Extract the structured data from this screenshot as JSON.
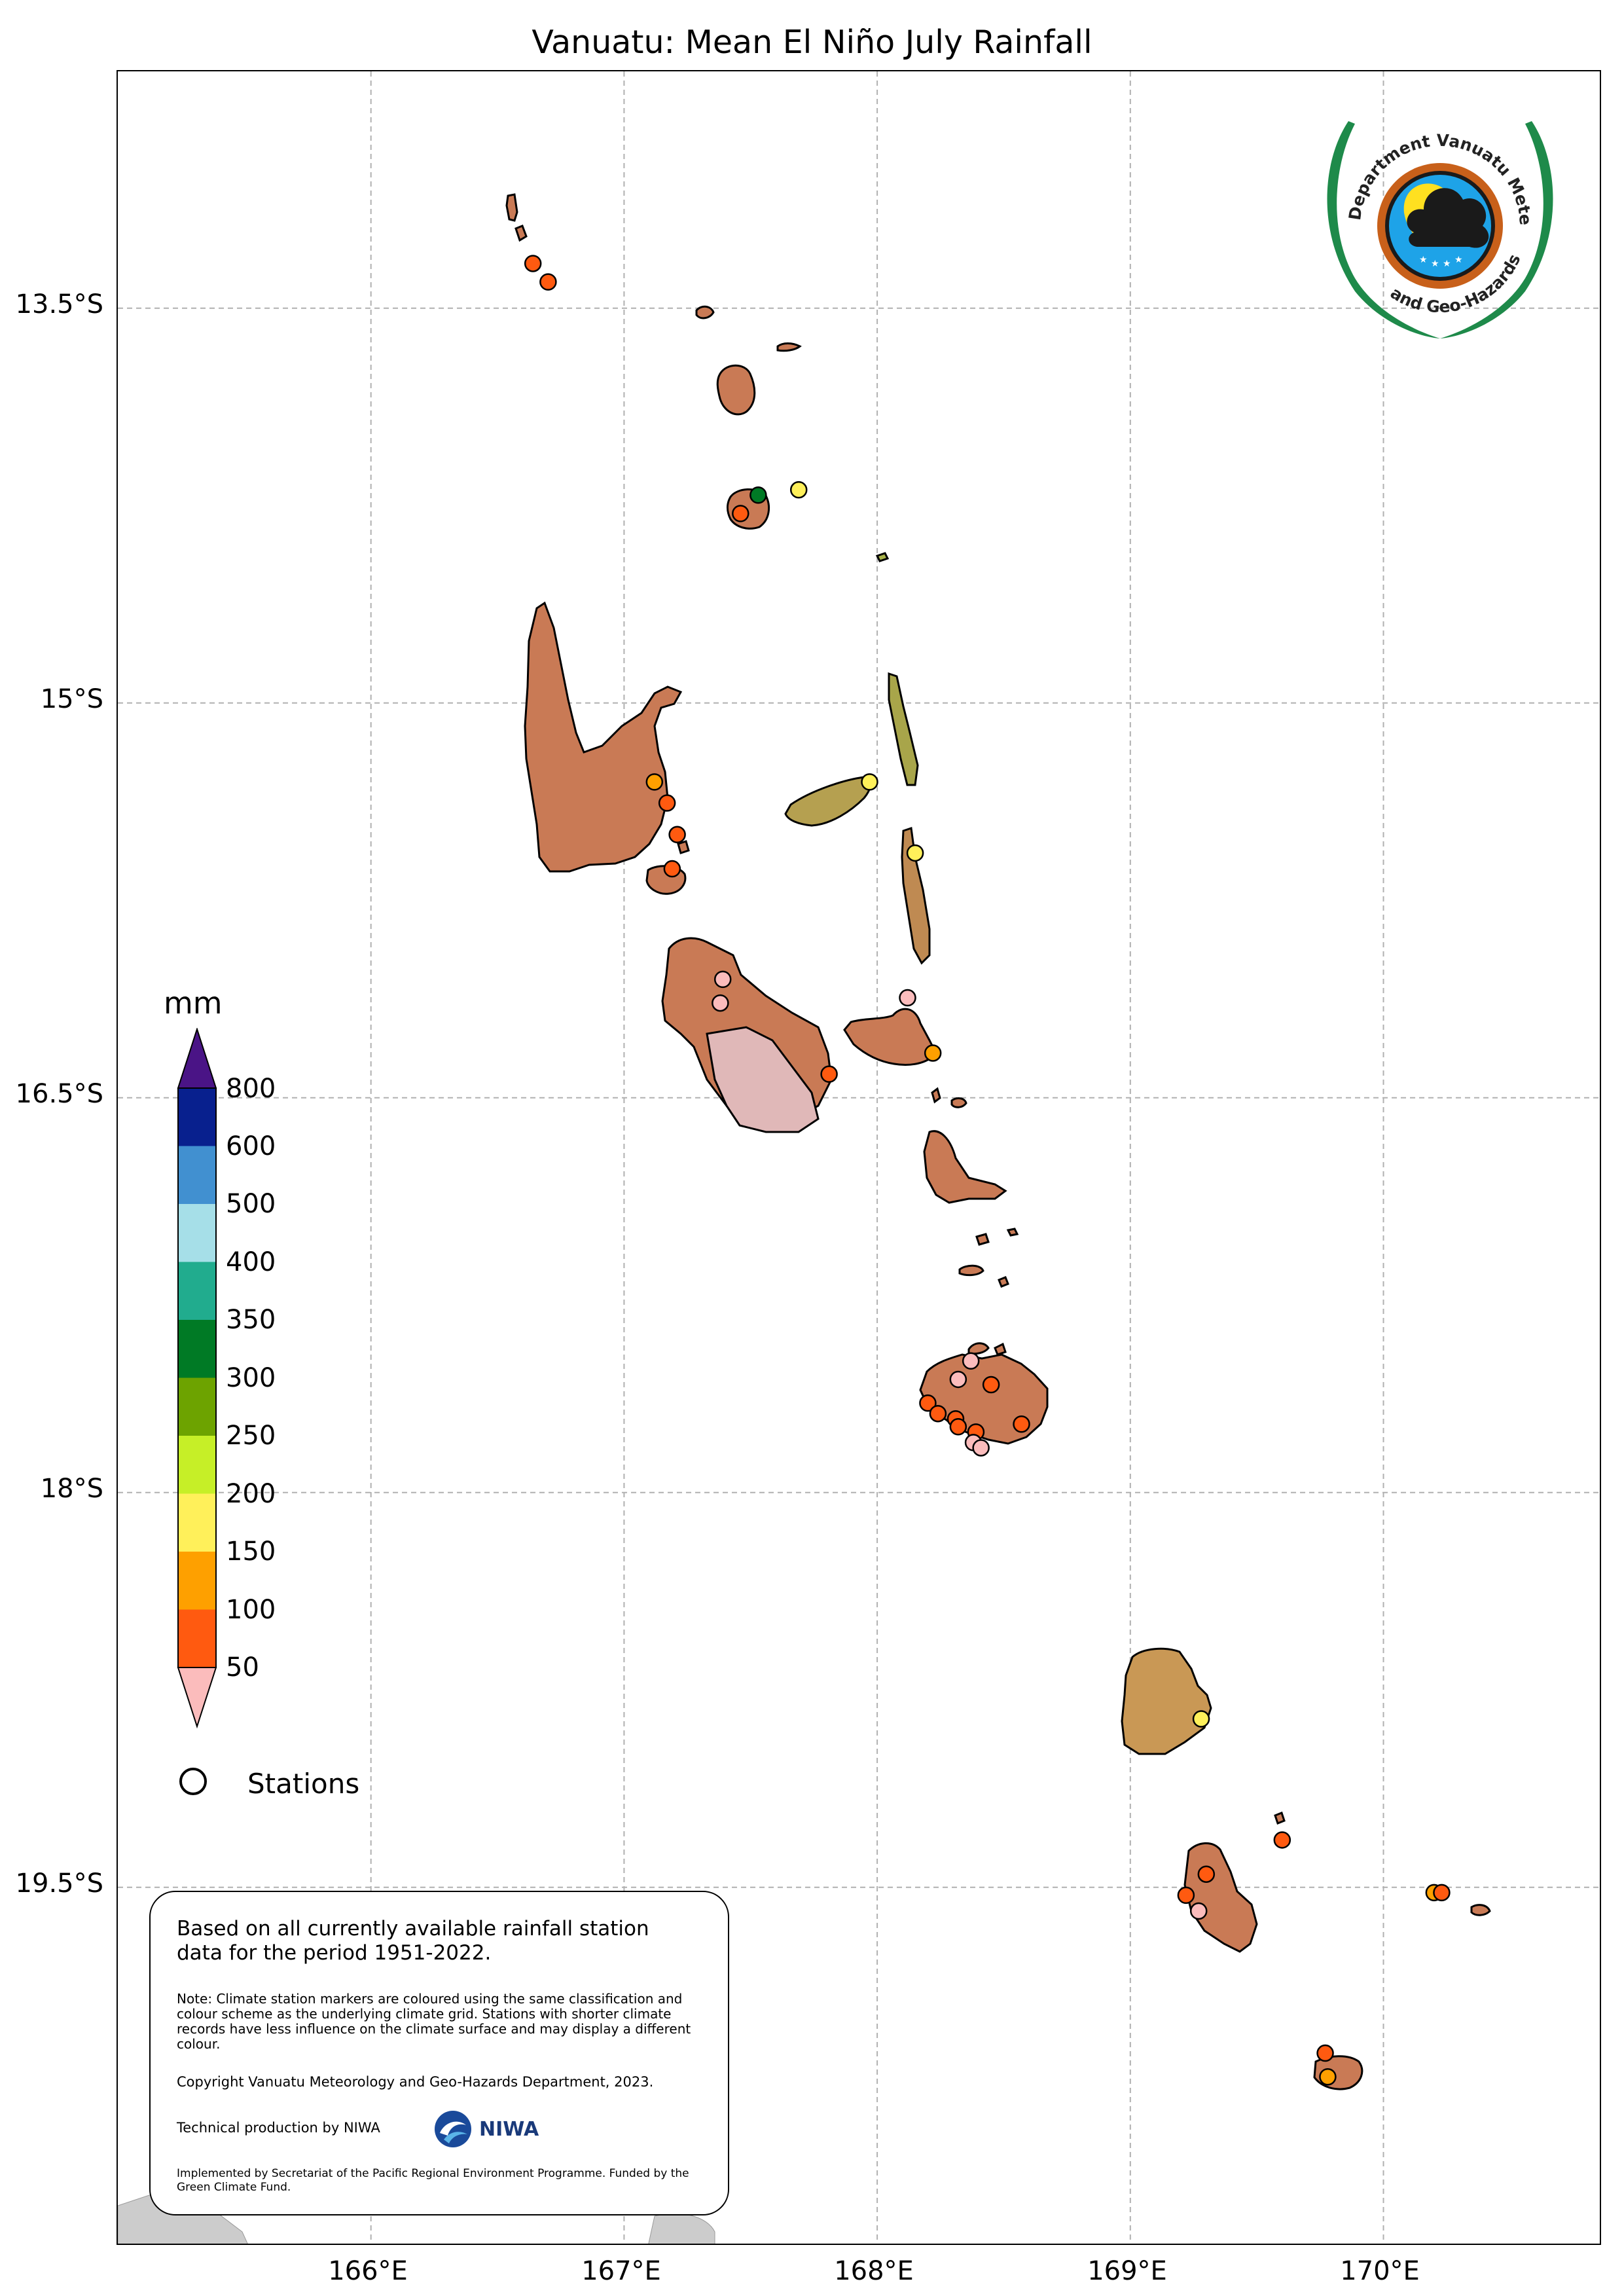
{
  "title": "Vanuatu: Mean El Niño July Rainfall",
  "axes": {
    "lat_labels": [
      "13.5°S",
      "15°S",
      "16.5°S",
      "18°S",
      "19.5°S"
    ],
    "lon_labels": [
      "166°E",
      "167°E",
      "168°E",
      "169°E",
      "170°E"
    ]
  },
  "logo": {
    "text": "Department Vanuatu Meteorology and Geo-Hazards",
    "colors": {
      "wreath": "#1e8a4a",
      "ring_outer": "#c8601a",
      "disk": "#1ea3e8",
      "sun": "#ffe020",
      "cloud": "#1a1a1a"
    }
  },
  "legend": {
    "unit": "mm",
    "labels": [
      "800",
      "600",
      "500",
      "400",
      "350",
      "300",
      "250",
      "200",
      "150",
      "100",
      "50"
    ],
    "colors": {
      "over": "#4a1486",
      "bins": [
        "#08208e",
        "#4190d0",
        "#a6dfe8",
        "#21ac8e",
        "#007a25",
        "#6da300",
        "#c6ef27",
        "#fff05a",
        "#fea000",
        "#ff5a10"
      ],
      "under": "#fbbcbc"
    },
    "stations_label": "Stations"
  },
  "info": {
    "main": "Based on all currently available rainfall station data for the period 1951-2022.",
    "note": "Note: Climate station markers are coloured using the same classification and colour scheme as the underlying climate grid. Stations with shorter climate records have less influence on the climate surface and may display a different colour.",
    "copyright": "Copyright Vanuatu Meteorology and Geo-Hazards Department, 2023.",
    "technical": "Technical production by NIWA",
    "niwa_logo_text": "NIWA",
    "implemented": "Implemented by Secretariat of the Pacific Regional Environment Programme. Funded by the Green Climate Fund."
  },
  "map": {
    "land_color": "#c97a55",
    "stations": [
      {
        "lon": 166.64,
        "lat": -13.33,
        "mm": 80
      },
      {
        "lon": 166.7,
        "lat": -13.4,
        "mm": 85
      },
      {
        "lon": 167.46,
        "lat": -14.28,
        "mm": 80
      },
      {
        "lon": 167.53,
        "lat": -14.21,
        "mm": 300
      },
      {
        "lon": 167.69,
        "lat": -14.19,
        "mm": 170
      },
      {
        "lon": 167.12,
        "lat": -15.3,
        "mm": 110
      },
      {
        "lon": 167.17,
        "lat": -15.38,
        "mm": 80
      },
      {
        "lon": 167.21,
        "lat": -15.5,
        "mm": 80
      },
      {
        "lon": 167.19,
        "lat": -15.63,
        "mm": 80
      },
      {
        "lon": 167.97,
        "lat": -15.3,
        "mm": 170
      },
      {
        "lon": 168.15,
        "lat": -15.57,
        "mm": 170
      },
      {
        "lon": 167.39,
        "lat": -16.05,
        "mm": 40
      },
      {
        "lon": 167.38,
        "lat": -16.14,
        "mm": 40
      },
      {
        "lon": 168.12,
        "lat": -16.12,
        "mm": 40
      },
      {
        "lon": 168.22,
        "lat": -16.33,
        "mm": 120
      },
      {
        "lon": 167.81,
        "lat": -16.41,
        "mm": 80
      },
      {
        "lon": 168.37,
        "lat": -17.5,
        "mm": 40
      },
      {
        "lon": 168.32,
        "lat": -17.57,
        "mm": 40
      },
      {
        "lon": 168.45,
        "lat": -17.59,
        "mm": 80
      },
      {
        "lon": 168.2,
        "lat": -17.66,
        "mm": 80
      },
      {
        "lon": 168.24,
        "lat": -17.7,
        "mm": 80
      },
      {
        "lon": 168.31,
        "lat": -17.72,
        "mm": 80
      },
      {
        "lon": 168.32,
        "lat": -17.75,
        "mm": 80
      },
      {
        "lon": 168.39,
        "lat": -17.77,
        "mm": 80
      },
      {
        "lon": 168.38,
        "lat": -17.81,
        "mm": 40
      },
      {
        "lon": 168.41,
        "lat": -17.83,
        "mm": 40
      },
      {
        "lon": 168.57,
        "lat": -17.74,
        "mm": 80
      },
      {
        "lon": 169.28,
        "lat": -18.86,
        "mm": 170
      },
      {
        "lon": 169.6,
        "lat": -19.32,
        "mm": 80
      },
      {
        "lon": 169.3,
        "lat": -19.45,
        "mm": 80
      },
      {
        "lon": 169.22,
        "lat": -19.53,
        "mm": 80
      },
      {
        "lon": 169.27,
        "lat": -19.59,
        "mm": 40
      },
      {
        "lon": 170.2,
        "lat": -19.52,
        "mm": 120
      },
      {
        "lon": 170.23,
        "lat": -19.52,
        "mm": 80
      },
      {
        "lon": 169.77,
        "lat": -20.13,
        "mm": 80
      },
      {
        "lon": 169.78,
        "lat": -20.22,
        "mm": 120
      }
    ]
  }
}
